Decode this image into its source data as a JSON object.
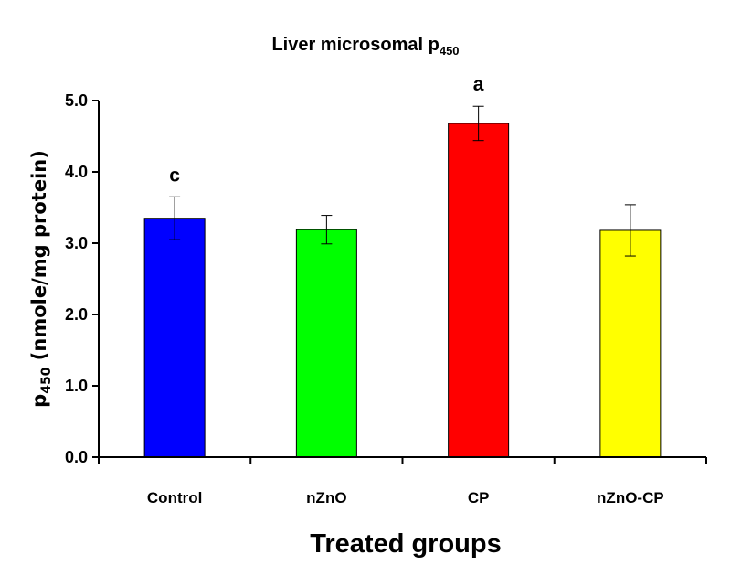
{
  "chart_data": {
    "type": "bar",
    "title_main": "Liver microsomal p",
    "title_sub": "450",
    "ylabel_main": "p",
    "ylabel_sub": "450",
    "ylabel_rest": " (nmole/mg protein)",
    "xlabel": "Treated groups",
    "categories": [
      "Control",
      "nZnO",
      "CP",
      "nZnO-CP"
    ],
    "values": [
      3.35,
      3.19,
      4.68,
      3.18
    ],
    "errors": [
      0.3,
      0.2,
      0.24,
      0.36
    ],
    "significance": [
      "c",
      "",
      "a",
      ""
    ],
    "bar_colors": [
      "#0000ff",
      "#00ff00",
      "#ff0000",
      "#ffff00"
    ],
    "ylim": [
      0,
      5
    ],
    "yticks": [
      "0.0",
      "1.0",
      "2.0",
      "3.0",
      "4.0",
      "5.0"
    ],
    "grid": false,
    "legend": "none"
  }
}
